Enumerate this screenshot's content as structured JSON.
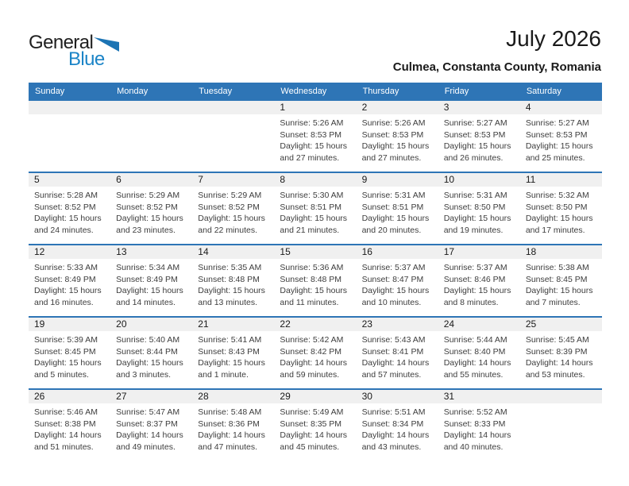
{
  "logo": {
    "general": "General",
    "blue": "Blue"
  },
  "header": {
    "title": "July 2026",
    "location": "Culmea, Constanta County, Romania"
  },
  "colors": {
    "header_band_blue": "#2e75b6",
    "week_divider_blue": "#2e75b6",
    "day_number_band_gray": "#f0f0f0",
    "logo_blue": "#1b84c7",
    "logo_triangle_blue": "#1c74b4",
    "detail_text_gray": "#3d3d3d"
  },
  "weekdays": [
    "Sunday",
    "Monday",
    "Tuesday",
    "Wednesday",
    "Thursday",
    "Friday",
    "Saturday"
  ],
  "weeks": [
    [
      null,
      null,
      null,
      {
        "day": "1",
        "sunrise": "Sunrise: 5:26 AM",
        "sunset": "Sunset: 8:53 PM",
        "daylight1": "Daylight: 15 hours",
        "daylight2": "and 27 minutes."
      },
      {
        "day": "2",
        "sunrise": "Sunrise: 5:26 AM",
        "sunset": "Sunset: 8:53 PM",
        "daylight1": "Daylight: 15 hours",
        "daylight2": "and 27 minutes."
      },
      {
        "day": "3",
        "sunrise": "Sunrise: 5:27 AM",
        "sunset": "Sunset: 8:53 PM",
        "daylight1": "Daylight: 15 hours",
        "daylight2": "and 26 minutes."
      },
      {
        "day": "4",
        "sunrise": "Sunrise: 5:27 AM",
        "sunset": "Sunset: 8:53 PM",
        "daylight1": "Daylight: 15 hours",
        "daylight2": "and 25 minutes."
      }
    ],
    [
      {
        "day": "5",
        "sunrise": "Sunrise: 5:28 AM",
        "sunset": "Sunset: 8:52 PM",
        "daylight1": "Daylight: 15 hours",
        "daylight2": "and 24 minutes."
      },
      {
        "day": "6",
        "sunrise": "Sunrise: 5:29 AM",
        "sunset": "Sunset: 8:52 PM",
        "daylight1": "Daylight: 15 hours",
        "daylight2": "and 23 minutes."
      },
      {
        "day": "7",
        "sunrise": "Sunrise: 5:29 AM",
        "sunset": "Sunset: 8:52 PM",
        "daylight1": "Daylight: 15 hours",
        "daylight2": "and 22 minutes."
      },
      {
        "day": "8",
        "sunrise": "Sunrise: 5:30 AM",
        "sunset": "Sunset: 8:51 PM",
        "daylight1": "Daylight: 15 hours",
        "daylight2": "and 21 minutes."
      },
      {
        "day": "9",
        "sunrise": "Sunrise: 5:31 AM",
        "sunset": "Sunset: 8:51 PM",
        "daylight1": "Daylight: 15 hours",
        "daylight2": "and 20 minutes."
      },
      {
        "day": "10",
        "sunrise": "Sunrise: 5:31 AM",
        "sunset": "Sunset: 8:50 PM",
        "daylight1": "Daylight: 15 hours",
        "daylight2": "and 19 minutes."
      },
      {
        "day": "11",
        "sunrise": "Sunrise: 5:32 AM",
        "sunset": "Sunset: 8:50 PM",
        "daylight1": "Daylight: 15 hours",
        "daylight2": "and 17 minutes."
      }
    ],
    [
      {
        "day": "12",
        "sunrise": "Sunrise: 5:33 AM",
        "sunset": "Sunset: 8:49 PM",
        "daylight1": "Daylight: 15 hours",
        "daylight2": "and 16 minutes."
      },
      {
        "day": "13",
        "sunrise": "Sunrise: 5:34 AM",
        "sunset": "Sunset: 8:49 PM",
        "daylight1": "Daylight: 15 hours",
        "daylight2": "and 14 minutes."
      },
      {
        "day": "14",
        "sunrise": "Sunrise: 5:35 AM",
        "sunset": "Sunset: 8:48 PM",
        "daylight1": "Daylight: 15 hours",
        "daylight2": "and 13 minutes."
      },
      {
        "day": "15",
        "sunrise": "Sunrise: 5:36 AM",
        "sunset": "Sunset: 8:48 PM",
        "daylight1": "Daylight: 15 hours",
        "daylight2": "and 11 minutes."
      },
      {
        "day": "16",
        "sunrise": "Sunrise: 5:37 AM",
        "sunset": "Sunset: 8:47 PM",
        "daylight1": "Daylight: 15 hours",
        "daylight2": "and 10 minutes."
      },
      {
        "day": "17",
        "sunrise": "Sunrise: 5:37 AM",
        "sunset": "Sunset: 8:46 PM",
        "daylight1": "Daylight: 15 hours",
        "daylight2": "and 8 minutes."
      },
      {
        "day": "18",
        "sunrise": "Sunrise: 5:38 AM",
        "sunset": "Sunset: 8:45 PM",
        "daylight1": "Daylight: 15 hours",
        "daylight2": "and 7 minutes."
      }
    ],
    [
      {
        "day": "19",
        "sunrise": "Sunrise: 5:39 AM",
        "sunset": "Sunset: 8:45 PM",
        "daylight1": "Daylight: 15 hours",
        "daylight2": "and 5 minutes."
      },
      {
        "day": "20",
        "sunrise": "Sunrise: 5:40 AM",
        "sunset": "Sunset: 8:44 PM",
        "daylight1": "Daylight: 15 hours",
        "daylight2": "and 3 minutes."
      },
      {
        "day": "21",
        "sunrise": "Sunrise: 5:41 AM",
        "sunset": "Sunset: 8:43 PM",
        "daylight1": "Daylight: 15 hours",
        "daylight2": "and 1 minute."
      },
      {
        "day": "22",
        "sunrise": "Sunrise: 5:42 AM",
        "sunset": "Sunset: 8:42 PM",
        "daylight1": "Daylight: 14 hours",
        "daylight2": "and 59 minutes."
      },
      {
        "day": "23",
        "sunrise": "Sunrise: 5:43 AM",
        "sunset": "Sunset: 8:41 PM",
        "daylight1": "Daylight: 14 hours",
        "daylight2": "and 57 minutes."
      },
      {
        "day": "24",
        "sunrise": "Sunrise: 5:44 AM",
        "sunset": "Sunset: 8:40 PM",
        "daylight1": "Daylight: 14 hours",
        "daylight2": "and 55 minutes."
      },
      {
        "day": "25",
        "sunrise": "Sunrise: 5:45 AM",
        "sunset": "Sunset: 8:39 PM",
        "daylight1": "Daylight: 14 hours",
        "daylight2": "and 53 minutes."
      }
    ],
    [
      {
        "day": "26",
        "sunrise": "Sunrise: 5:46 AM",
        "sunset": "Sunset: 8:38 PM",
        "daylight1": "Daylight: 14 hours",
        "daylight2": "and 51 minutes."
      },
      {
        "day": "27",
        "sunrise": "Sunrise: 5:47 AM",
        "sunset": "Sunset: 8:37 PM",
        "daylight1": "Daylight: 14 hours",
        "daylight2": "and 49 minutes."
      },
      {
        "day": "28",
        "sunrise": "Sunrise: 5:48 AM",
        "sunset": "Sunset: 8:36 PM",
        "daylight1": "Daylight: 14 hours",
        "daylight2": "and 47 minutes."
      },
      {
        "day": "29",
        "sunrise": "Sunrise: 5:49 AM",
        "sunset": "Sunset: 8:35 PM",
        "daylight1": "Daylight: 14 hours",
        "daylight2": "and 45 minutes."
      },
      {
        "day": "30",
        "sunrise": "Sunrise: 5:51 AM",
        "sunset": "Sunset: 8:34 PM",
        "daylight1": "Daylight: 14 hours",
        "daylight2": "and 43 minutes."
      },
      {
        "day": "31",
        "sunrise": "Sunrise: 5:52 AM",
        "sunset": "Sunset: 8:33 PM",
        "daylight1": "Daylight: 14 hours",
        "daylight2": "and 40 minutes."
      },
      null
    ]
  ]
}
